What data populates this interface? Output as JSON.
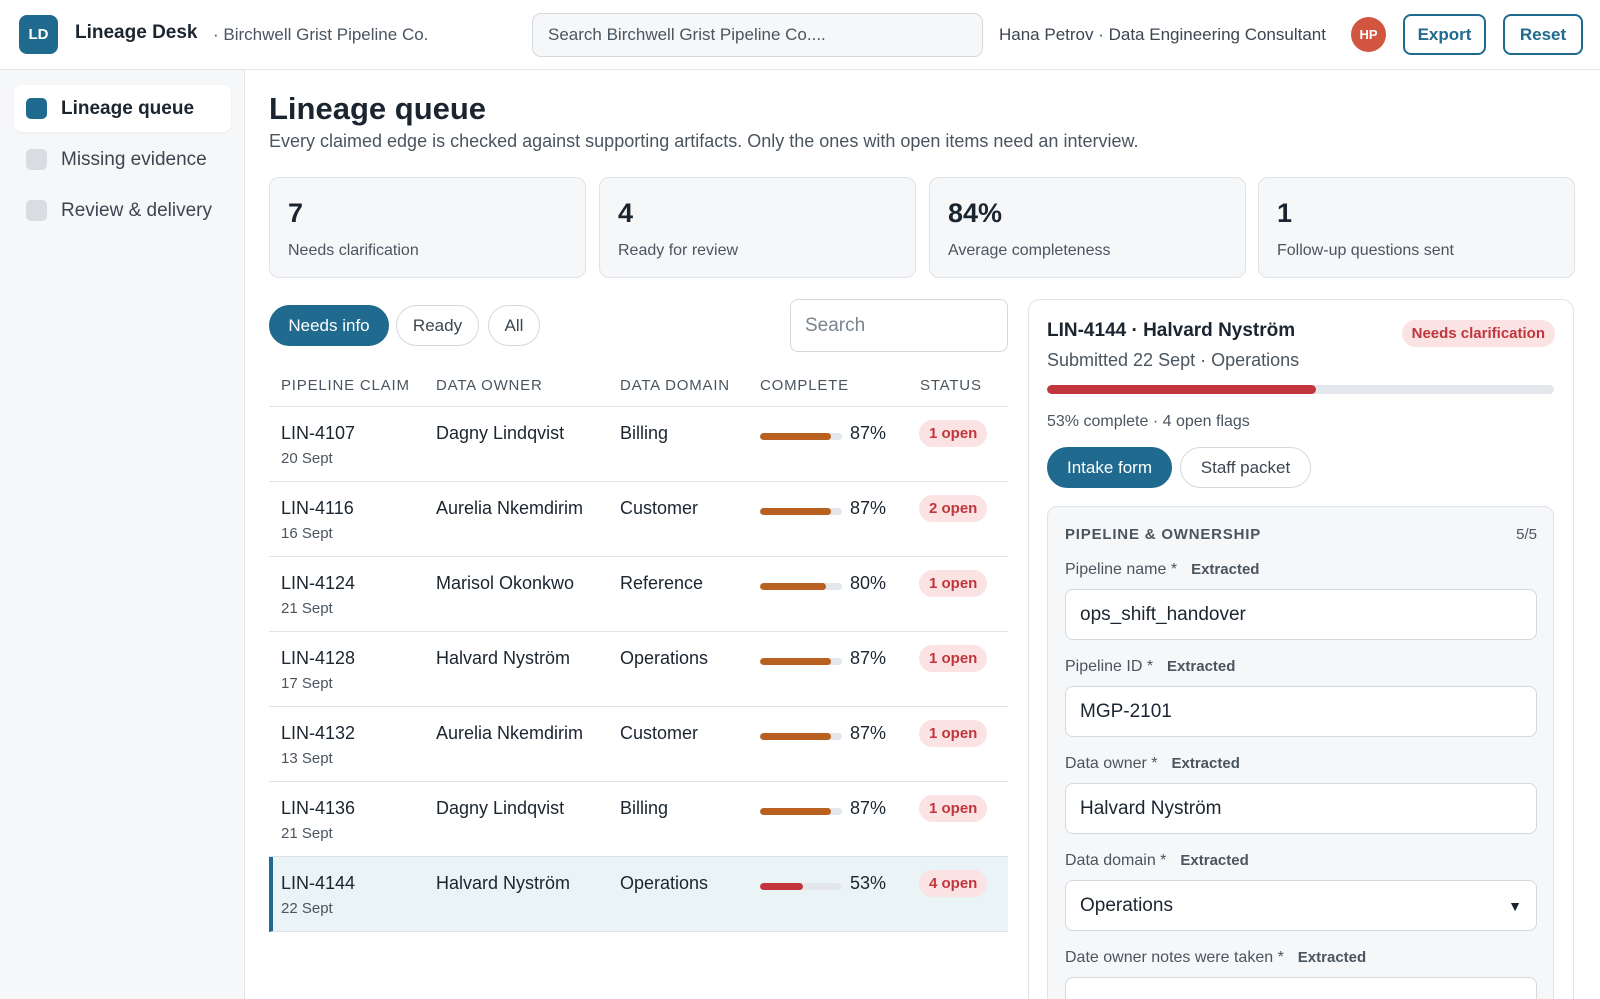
{
  "header": {
    "logo": "LD",
    "app_name": "Lineage Desk",
    "org": "· Birchwell Grist Pipeline Co.",
    "search_placeholder": "Search Birchwell Grist Pipeline Co....",
    "user": "Hana Petrov · Data Engineering Consultant",
    "avatar": "HP",
    "export_label": "Export",
    "reset_label": "Reset"
  },
  "sidebar": {
    "items": [
      {
        "label": "Lineage queue",
        "active": true
      },
      {
        "label": "Missing evidence",
        "active": false
      },
      {
        "label": "Review & delivery",
        "active": false
      }
    ]
  },
  "main": {
    "title": "Lineage queue",
    "subtitle": "Every claimed edge is checked against supporting artifacts. Only the ones with open items need an interview.",
    "stats": [
      {
        "value": "7",
        "label": "Needs clarification"
      },
      {
        "value": "4",
        "label": "Ready for review"
      },
      {
        "value": "84%",
        "label": "Average completeness"
      },
      {
        "value": "1",
        "label": "Follow-up questions sent"
      }
    ],
    "filters": [
      "Needs info",
      "Ready",
      "All"
    ],
    "search_placeholder": "Search",
    "columns": [
      "PIPELINE CLAIM",
      "DATA OWNER",
      "DATA DOMAIN",
      "COMPLETE",
      "STATUS"
    ],
    "rows": [
      {
        "id": "LIN-4107",
        "date": "20 Sept",
        "owner": "Dagny Lindqvist",
        "domain": "Billing",
        "complete": 87,
        "pct": "87%",
        "status": "1 open"
      },
      {
        "id": "LIN-4116",
        "date": "16 Sept",
        "owner": "Aurelia Nkemdirim",
        "domain": "Customer",
        "complete": 87,
        "pct": "87%",
        "status": "2 open"
      },
      {
        "id": "LIN-4124",
        "date": "21 Sept",
        "owner": "Marisol Okonkwo",
        "domain": "Reference",
        "complete": 80,
        "pct": "80%",
        "status": "1 open"
      },
      {
        "id": "LIN-4128",
        "date": "17 Sept",
        "owner": "Halvard Nyström",
        "domain": "Operations",
        "complete": 87,
        "pct": "87%",
        "status": "1 open"
      },
      {
        "id": "LIN-4132",
        "date": "13 Sept",
        "owner": "Aurelia Nkemdirim",
        "domain": "Customer",
        "complete": 87,
        "pct": "87%",
        "status": "1 open"
      },
      {
        "id": "LIN-4136",
        "date": "21 Sept",
        "owner": "Dagny Lindqvist",
        "domain": "Billing",
        "complete": 87,
        "pct": "87%",
        "status": "1 open"
      },
      {
        "id": "LIN-4144",
        "date": "22 Sept",
        "owner": "Halvard Nyström",
        "domain": "Operations",
        "complete": 53,
        "pct": "53%",
        "status": "4 open",
        "selected": true
      }
    ]
  },
  "detail": {
    "title": "LIN-4144 · Halvard Nyström",
    "status": "Needs clarification",
    "subtitle": "Submitted 22 Sept · Operations",
    "complete": 53,
    "meta": "53% complete · 4 open flags",
    "tabs": [
      "Intake form",
      "Staff packet"
    ],
    "section_title": "PIPELINE & OWNERSHIP",
    "section_count": "5/5",
    "fields": [
      {
        "label": "Pipeline name *",
        "tag": "Extracted",
        "value": "ops_shift_handover"
      },
      {
        "label": "Pipeline ID *",
        "tag": "Extracted",
        "value": "MGP-2101"
      },
      {
        "label": "Data owner *",
        "tag": "Extracted",
        "value": "Halvard Nyström"
      },
      {
        "label": "Data domain *",
        "tag": "Extracted",
        "value": "Operations"
      },
      {
        "label": "Date owner notes were taken *",
        "tag": "Extracted",
        "value": ""
      }
    ]
  },
  "colors": {
    "accent": "#1f6a8e",
    "bar_amber": "#b8601f",
    "bar_red": "#c0363c",
    "badge_bg": "#fbe2e3"
  }
}
